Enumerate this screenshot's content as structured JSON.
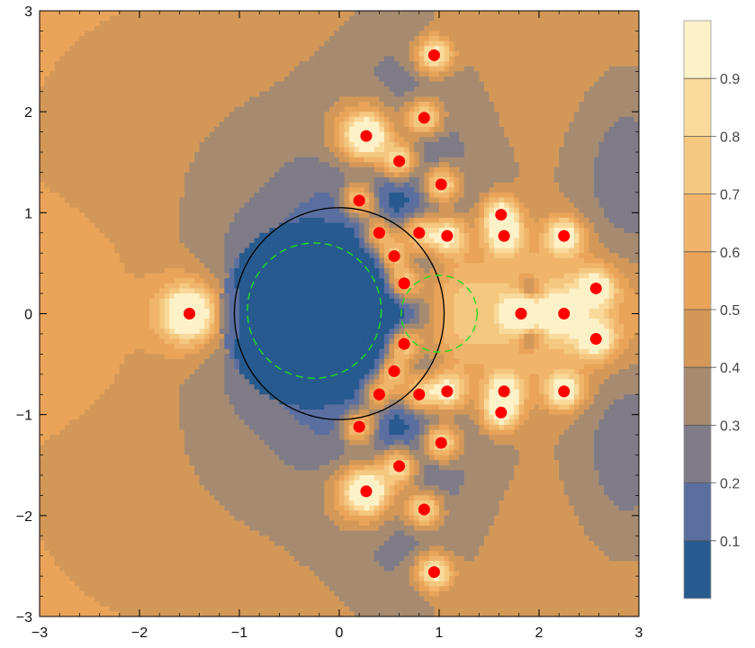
{
  "chart_data": {
    "type": "contour",
    "title": "",
    "xlabel": "",
    "ylabel": "",
    "xlim": [
      -3,
      3
    ],
    "ylim": [
      -3,
      3
    ],
    "x_ticks": [
      -3,
      -2,
      -1,
      0,
      1,
      2,
      3
    ],
    "y_ticks": [
      -3,
      -2,
      -1,
      0,
      1,
      2,
      3
    ],
    "x_tick_labels": [
      "−3",
      "−2",
      "−1",
      "0",
      "1",
      "2",
      "3"
    ],
    "y_tick_labels": [
      "−3",
      "−2",
      "−1",
      "0",
      "1",
      "2",
      "3"
    ],
    "colorbar": {
      "range": [
        0,
        1
      ],
      "ticks": [
        0.1,
        0.2,
        0.3,
        0.4,
        0.5,
        0.6,
        0.7,
        0.8,
        0.9
      ],
      "tick_labels": [
        "0.1",
        "0.2",
        "0.3",
        "0.4",
        "0.5",
        "0.6",
        "0.7",
        "0.8",
        "0.9"
      ],
      "levels": [
        {
          "from": 0.0,
          "to": 0.1,
          "color": "#275a8e"
        },
        {
          "from": 0.1,
          "to": 0.2,
          "color": "#5a6fa0"
        },
        {
          "from": 0.2,
          "to": 0.3,
          "color": "#7f7b87"
        },
        {
          "from": 0.3,
          "to": 0.4,
          "color": "#a68b71"
        },
        {
          "from": 0.4,
          "to": 0.5,
          "color": "#d39858"
        },
        {
          "from": 0.5,
          "to": 0.6,
          "color": "#e9a45a"
        },
        {
          "from": 0.6,
          "to": 0.7,
          "color": "#f0b56b"
        },
        {
          "from": 0.7,
          "to": 0.8,
          "color": "#f5c880"
        },
        {
          "from": 0.8,
          "to": 0.9,
          "color": "#f9da9b"
        },
        {
          "from": 0.9,
          "to": 1.0,
          "color": "#fdf1c8"
        }
      ]
    },
    "circles": [
      {
        "center": [
          0,
          0
        ],
        "radius": 1.05,
        "style": "solid",
        "color": "#000000"
      },
      {
        "center": [
          -0.25,
          0.03
        ],
        "radius": 0.67,
        "style": "dashed",
        "color": "#22dd22"
      },
      {
        "center": [
          1.0,
          0.0
        ],
        "radius": 0.38,
        "style": "dashed",
        "color": "#22dd22"
      }
    ],
    "points": [
      [
        -1.5,
        0.0
      ],
      [
        0.27,
        1.76
      ],
      [
        0.27,
        -1.76
      ],
      [
        0.95,
        2.56
      ],
      [
        0.95,
        -2.56
      ],
      [
        0.85,
        1.94
      ],
      [
        0.85,
        -1.94
      ],
      [
        0.6,
        1.51
      ],
      [
        0.6,
        -1.51
      ],
      [
        1.02,
        1.28
      ],
      [
        1.02,
        -1.28
      ],
      [
        0.2,
        1.12
      ],
      [
        0.2,
        -1.12
      ],
      [
        0.4,
        0.8
      ],
      [
        0.4,
        -0.8
      ],
      [
        0.55,
        0.57
      ],
      [
        0.55,
        -0.57
      ],
      [
        0.65,
        0.3
      ],
      [
        0.65,
        -0.3
      ],
      [
        0.8,
        0.8
      ],
      [
        0.8,
        -0.8
      ],
      [
        1.08,
        0.77
      ],
      [
        1.08,
        -0.77
      ],
      [
        1.62,
        0.98
      ],
      [
        1.62,
        -0.98
      ],
      [
        1.65,
        0.77
      ],
      [
        1.65,
        -0.77
      ],
      [
        2.25,
        0.77
      ],
      [
        2.25,
        -0.77
      ],
      [
        2.57,
        0.25
      ],
      [
        2.57,
        -0.25
      ],
      [
        1.82,
        0.0
      ],
      [
        2.25,
        0.0
      ]
    ],
    "point_color": "#ff0000",
    "grid": false
  }
}
